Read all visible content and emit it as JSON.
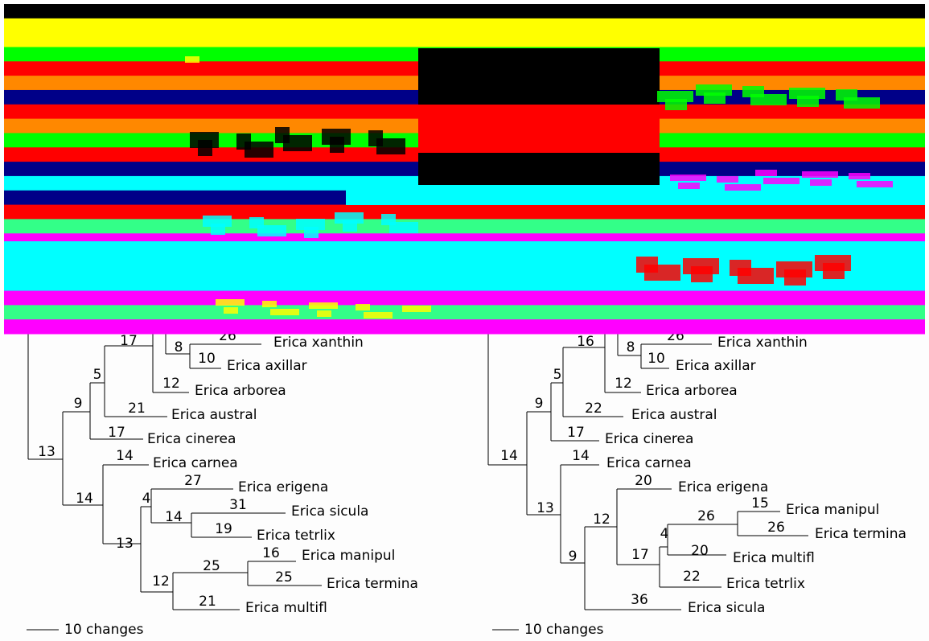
{
  "trees": [
    {
      "leaves": [
        {
          "name": "Erica xanthin",
          "length": 26
        },
        {
          "name": "Erica axillar",
          "length": 10
        },
        {
          "name": "Erica arborea",
          "length": 12
        },
        {
          "name": "Erica austral",
          "length": 21
        },
        {
          "name": "Erica cinerea",
          "length": 17
        },
        {
          "name": "Erica carnea",
          "length": 14
        },
        {
          "name": "Erica erigena",
          "length": 27
        },
        {
          "name": "Erica sicula",
          "length": 31
        },
        {
          "name": "Erica tetrlix",
          "length": 19
        },
        {
          "name": "Erica manipul",
          "length": 16
        },
        {
          "name": "Erica termina",
          "length": 25
        },
        {
          "name": "Erica multifl",
          "length": 21
        }
      ],
      "internal_lengths": [
        8,
        17,
        5,
        9,
        13,
        14,
        4,
        14,
        13,
        25,
        12
      ],
      "scale_label": "10 changes"
    },
    {
      "leaves": [
        {
          "name": "Erica xanthin",
          "length": 26
        },
        {
          "name": "Erica axillar",
          "length": 10
        },
        {
          "name": "Erica arborea",
          "length": 12
        },
        {
          "name": "Erica austral",
          "length": 22
        },
        {
          "name": "Erica cinerea",
          "length": 17
        },
        {
          "name": "Erica carnea",
          "length": 14
        },
        {
          "name": "Erica erigena",
          "length": 20
        },
        {
          "name": "Erica manipul",
          "length": 15
        },
        {
          "name": "Erica termina",
          "length": 26
        },
        {
          "name": "Erica multifl",
          "length": 20
        },
        {
          "name": "Erica tetrlix",
          "length": 22
        },
        {
          "name": "Erica sicula",
          "length": 36
        }
      ],
      "internal_lengths": [
        8,
        16,
        5,
        9,
        14,
        13,
        12,
        26,
        17,
        4,
        9
      ],
      "scale_label": "10 changes"
    }
  ]
}
